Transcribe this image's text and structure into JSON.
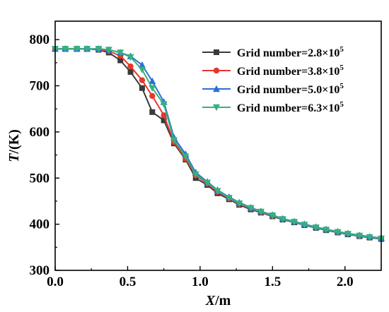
{
  "chart_data": {
    "type": "line",
    "xlabel": {
      "italic": "X",
      "rest": "/m"
    },
    "ylabel": {
      "italic": "T",
      "rest": "/(K)"
    },
    "xlim": [
      0,
      2.25
    ],
    "ylim": [
      300,
      840
    ],
    "xticks": [
      0.0,
      0.5,
      1.0,
      1.5,
      2.0
    ],
    "xtick_labels": [
      "0.0",
      "0.5",
      "1.0",
      "1.5",
      "2.0"
    ],
    "yticks": [
      300,
      400,
      500,
      600,
      700,
      800
    ],
    "ytick_labels": [
      "300",
      "400",
      "500",
      "600",
      "700",
      "800"
    ],
    "legend_position": "top-right",
    "grid": false,
    "series": [
      {
        "name": "Grid number=2.8×10^5",
        "label_base": "Grid number=2.8×10",
        "label_exp": "5",
        "color": "#3a3a3a",
        "marker": "square",
        "x": [
          0.0,
          0.07,
          0.15,
          0.22,
          0.3,
          0.37,
          0.45,
          0.52,
          0.6,
          0.67,
          0.75,
          0.82,
          0.9,
          0.97,
          1.05,
          1.12,
          1.2,
          1.27,
          1.35,
          1.42,
          1.5,
          1.57,
          1.65,
          1.72,
          1.8,
          1.87,
          1.95,
          2.02,
          2.1,
          2.17,
          2.25
        ],
        "y": [
          780,
          780,
          780,
          780,
          778,
          772,
          755,
          730,
          695,
          643,
          625,
          575,
          540,
          500,
          485,
          467,
          454,
          442,
          432,
          425,
          417,
          410,
          404,
          398,
          392,
          387,
          382,
          378,
          374,
          371,
          368
        ]
      },
      {
        "name": "Grid number=3.8×10^5",
        "label_base": "Grid number=3.8×10",
        "label_exp": "5",
        "color": "#e8362d",
        "marker": "circle",
        "x": [
          0.0,
          0.07,
          0.15,
          0.22,
          0.3,
          0.37,
          0.45,
          0.52,
          0.6,
          0.67,
          0.75,
          0.82,
          0.9,
          0.97,
          1.05,
          1.12,
          1.2,
          1.27,
          1.35,
          1.42,
          1.5,
          1.57,
          1.65,
          1.72,
          1.8,
          1.87,
          1.95,
          2.02,
          2.1,
          2.17,
          2.25
        ],
        "y": [
          780,
          780,
          780,
          780,
          779,
          775,
          765,
          742,
          712,
          678,
          636,
          578,
          542,
          506,
          488,
          470,
          456,
          444,
          434,
          426,
          418,
          411,
          405,
          399,
          393,
          388,
          383,
          379,
          375,
          372,
          369
        ]
      },
      {
        "name": "Grid number=5.0×10^5",
        "label_base": "Grid number=5.0×10",
        "label_exp": "5",
        "color": "#2b6fd6",
        "marker": "triangle-up",
        "x": [
          0.0,
          0.07,
          0.15,
          0.22,
          0.3,
          0.37,
          0.45,
          0.52,
          0.6,
          0.67,
          0.75,
          0.82,
          0.9,
          0.97,
          1.05,
          1.12,
          1.2,
          1.27,
          1.35,
          1.42,
          1.5,
          1.57,
          1.65,
          1.72,
          1.8,
          1.87,
          1.95,
          2.02,
          2.1,
          2.17,
          2.25
        ],
        "y": [
          780,
          780,
          780,
          780,
          780,
          778,
          772,
          764,
          745,
          710,
          665,
          588,
          552,
          512,
          492,
          474,
          459,
          447,
          436,
          428,
          420,
          412,
          406,
          400,
          394,
          389,
          384,
          380,
          376,
          373,
          370
        ]
      },
      {
        "name": "Grid number=6.3×10^5",
        "label_base": "Grid number=6.3×10",
        "label_exp": "5",
        "color": "#34b27d",
        "marker": "triangle-down",
        "x": [
          0.0,
          0.07,
          0.15,
          0.22,
          0.3,
          0.37,
          0.45,
          0.52,
          0.6,
          0.67,
          0.75,
          0.82,
          0.9,
          0.97,
          1.05,
          1.12,
          1.2,
          1.27,
          1.35,
          1.42,
          1.5,
          1.57,
          1.65,
          1.72,
          1.8,
          1.87,
          1.95,
          2.02,
          2.1,
          2.17,
          2.25
        ],
        "y": [
          780,
          780,
          780,
          780,
          780,
          778,
          772,
          762,
          735,
          695,
          660,
          582,
          547,
          508,
          490,
          472,
          457,
          445,
          435,
          427,
          419,
          411,
          405,
          399,
          393,
          388,
          383,
          379,
          375,
          372,
          369
        ]
      }
    ]
  }
}
